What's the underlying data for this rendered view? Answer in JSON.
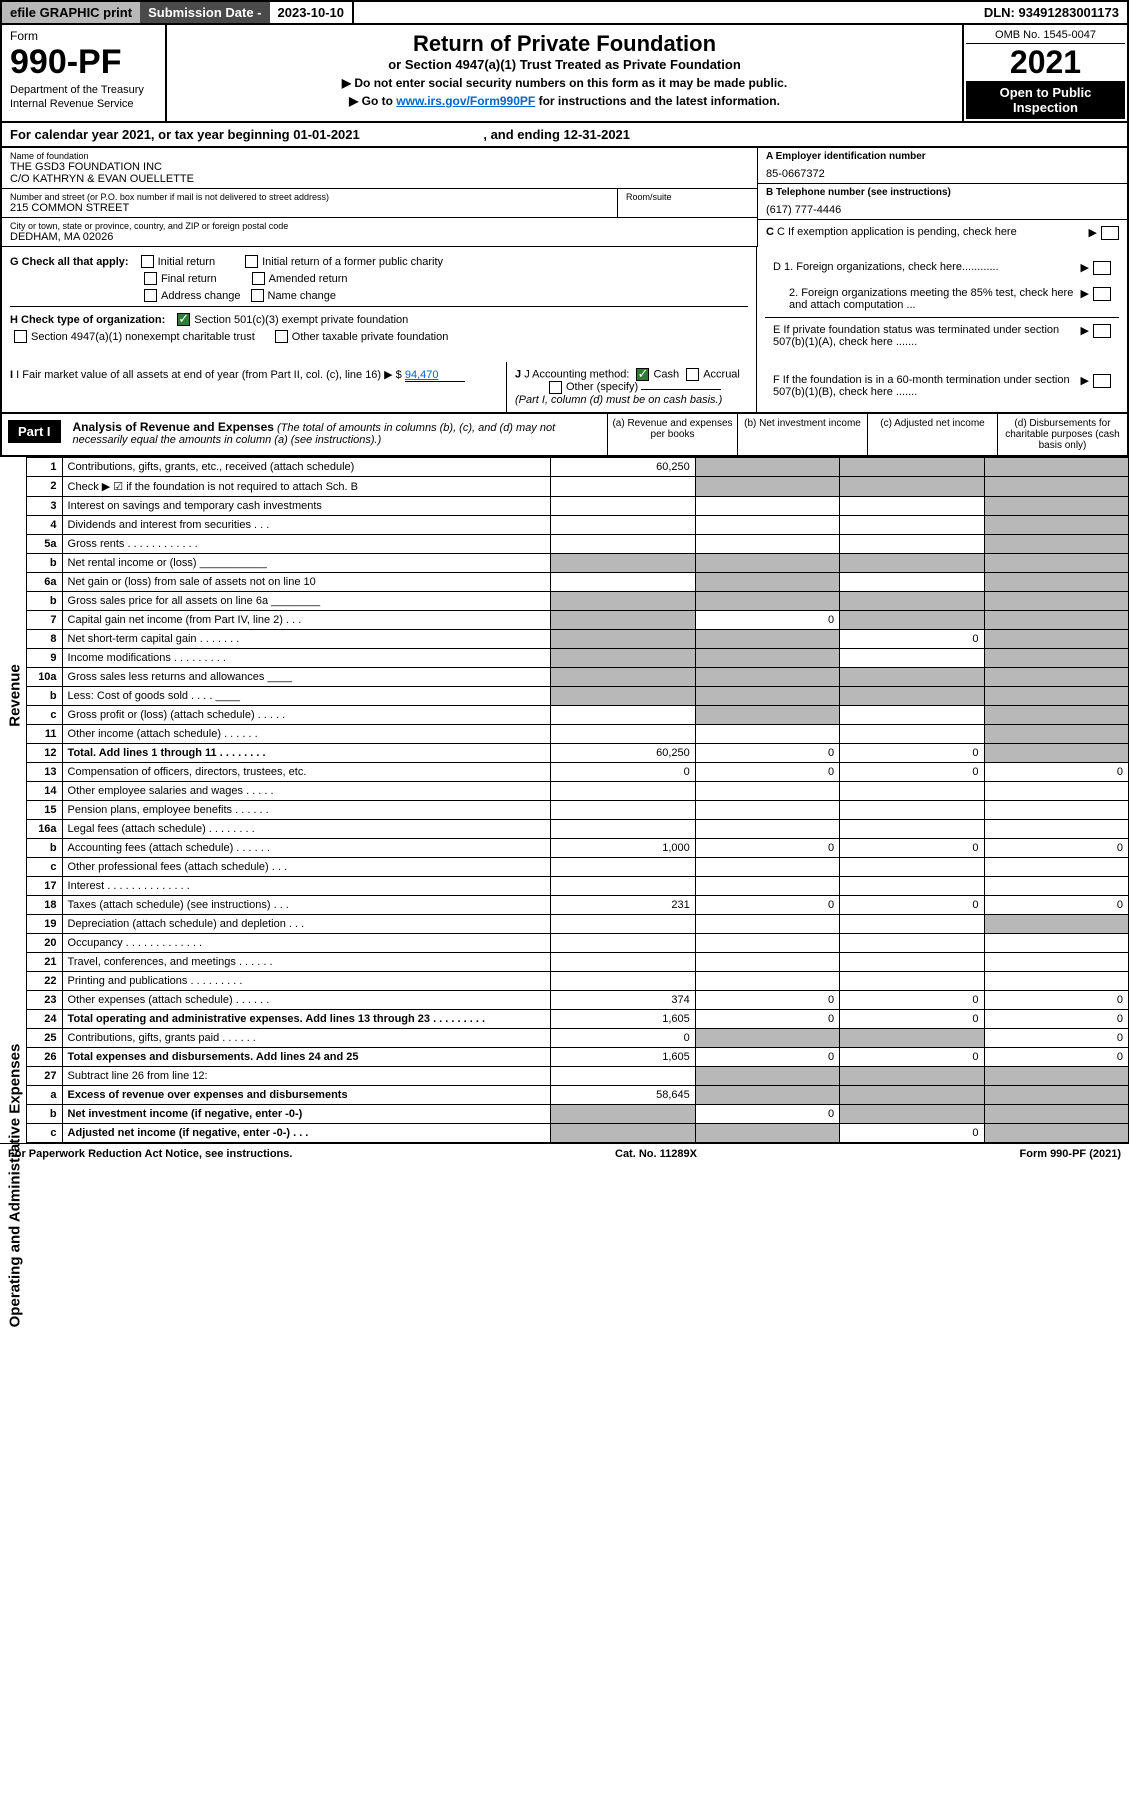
{
  "top": {
    "efile": "efile GRAPHIC print",
    "subdate_label": "Submission Date - ",
    "subdate": "2023-10-10",
    "dln": "DLN: 93491283001173"
  },
  "header": {
    "form": "Form",
    "form_number": "990-PF",
    "dept1": "Department of the Treasury",
    "dept2": "Internal Revenue Service",
    "title": "Return of Private Foundation",
    "subtitle": "or Section 4947(a)(1) Trust Treated as Private Foundation",
    "instr1": "▶ Do not enter social security numbers on this form as it may be made public.",
    "instr2_pre": "▶ Go to ",
    "instr2_link": "www.irs.gov/Form990PF",
    "instr2_post": " for instructions and the latest information.",
    "omb": "OMB No. 1545-0047",
    "year": "2021",
    "open": "Open to Public Inspection"
  },
  "cal_year": {
    "pre": "For calendar year 2021, or tax year beginning ",
    "begin": "01-01-2021",
    "mid": " , and ending ",
    "end": "12-31-2021"
  },
  "info": {
    "name_label": "Name of foundation",
    "name1": "THE GSD3 FOUNDATION INC",
    "name2": "C/O KATHRYN & EVAN OUELLETTE",
    "addr_label": "Number and street (or P.O. box number if mail is not delivered to street address)",
    "addr": "215 COMMON STREET",
    "room_label": "Room/suite",
    "city_label": "City or town, state or province, country, and ZIP or foreign postal code",
    "city": "DEDHAM, MA  02026",
    "ein_label": "A Employer identification number",
    "ein": "85-0667372",
    "phone_label": "B Telephone number (see instructions)",
    "phone": "(617) 777-4446",
    "c_label": "C If exemption application is pending, check here",
    "d1": "D 1. Foreign organizations, check here............",
    "d2": "2. Foreign organizations meeting the 85% test, check here and attach computation ...",
    "e": "E  If private foundation status was terminated under section 507(b)(1)(A), check here .......",
    "f": "F  If the foundation is in a 60-month termination under section 507(b)(1)(B), check here .......",
    "g_label": "G Check all that apply:",
    "g_opts": [
      "Initial return",
      "Initial return of a former public charity",
      "Final return",
      "Amended return",
      "Address change",
      "Name change"
    ],
    "h_label": "H Check type of organization:",
    "h_opts": [
      "Section 501(c)(3) exempt private foundation",
      "Section 4947(a)(1) nonexempt charitable trust",
      "Other taxable private foundation"
    ],
    "i_label": "I Fair market value of all assets at end of year (from Part II, col. (c), line 16)",
    "i_val": "94,470",
    "j_label": "J Accounting method:",
    "j_opts": [
      "Cash",
      "Accrual",
      "Other (specify)"
    ],
    "j_note": "(Part I, column (d) must be on cash basis.)"
  },
  "part1": {
    "label": "Part I",
    "title": "Analysis of Revenue and Expenses",
    "title_note": " (The total of amounts in columns (b), (c), and (d) may not necessarily equal the amounts in column (a) (see instructions).)",
    "col_a": "(a)   Revenue and expenses per books",
    "col_b": "(b)   Net investment income",
    "col_c": "(c)   Adjusted net income",
    "col_d": "(d)   Disbursements for charitable purposes (cash basis only)"
  },
  "side_labels": {
    "revenue": "Revenue",
    "expenses": "Operating and Administrative Expenses"
  },
  "rows": [
    {
      "n": "1",
      "desc": "Contributions, gifts, grants, etc., received (attach schedule)",
      "a": "60,250",
      "b_sh": true,
      "c_sh": true,
      "d_sh": true
    },
    {
      "n": "2",
      "desc": "Check ▶ ☑ if the foundation is not required to attach Sch. B",
      "empty": true,
      "b_sh": true,
      "c_sh": true,
      "d_sh": true
    },
    {
      "n": "3",
      "desc": "Interest on savings and temporary cash investments",
      "d_sh": true
    },
    {
      "n": "4",
      "desc": "Dividends and interest from securities   .   .   .",
      "d_sh": true
    },
    {
      "n": "5a",
      "desc": "Gross rents   .   .   .   .   .   .   .   .   .   .   .   .",
      "d_sh": true
    },
    {
      "n": "b",
      "desc": "Net rental income or (loss)  ___________",
      "a_sh": true,
      "b_sh": true,
      "c_sh": true,
      "d_sh": true
    },
    {
      "n": "6a",
      "desc": "Net gain or (loss) from sale of assets not on line 10",
      "b_sh": true,
      "d_sh": true
    },
    {
      "n": "b",
      "desc": "Gross sales price for all assets on line 6a ________",
      "a_sh": true,
      "b_sh": true,
      "c_sh": true,
      "d_sh": true
    },
    {
      "n": "7",
      "desc": "Capital gain net income (from Part IV, line 2)   .   .   .",
      "a_sh": true,
      "b": "0",
      "c_sh": true,
      "d_sh": true
    },
    {
      "n": "8",
      "desc": "Net short-term capital gain   .   .   .   .   .   .   .",
      "a_sh": true,
      "b_sh": true,
      "c": "0",
      "d_sh": true
    },
    {
      "n": "9",
      "desc": "Income modifications   .   .   .   .   .   .   .   .   .",
      "a_sh": true,
      "b_sh": true,
      "d_sh": true
    },
    {
      "n": "10a",
      "desc": "Gross sales less returns and allowances  ____",
      "a_sh": true,
      "b_sh": true,
      "c_sh": true,
      "d_sh": true
    },
    {
      "n": "b",
      "desc": "Less: Cost of goods sold   .   .   .   .   ____",
      "a_sh": true,
      "b_sh": true,
      "c_sh": true,
      "d_sh": true
    },
    {
      "n": "c",
      "desc": "Gross profit or (loss) (attach schedule)   .   .   .   .   .",
      "b_sh": true,
      "d_sh": true
    },
    {
      "n": "11",
      "desc": "Other income (attach schedule)   .   .   .   .   .   .",
      "d_sh": true
    },
    {
      "n": "12",
      "desc": "Total. Add lines 1 through 11   .   .   .   .   .   .   .   .",
      "bold": true,
      "a": "60,250",
      "b": "0",
      "c": "0",
      "d_sh": true
    },
    {
      "n": "13",
      "desc": "Compensation of officers, directors, trustees, etc.",
      "a": "0",
      "b": "0",
      "c": "0",
      "d": "0"
    },
    {
      "n": "14",
      "desc": "Other employee salaries and wages   .   .   .   .   ."
    },
    {
      "n": "15",
      "desc": "Pension plans, employee benefits   .   .   .   .   .   ."
    },
    {
      "n": "16a",
      "desc": "Legal fees (attach schedule)   .   .   .   .   .   .   .   ."
    },
    {
      "n": "b",
      "desc": "Accounting fees (attach schedule)   .   .   .   .   .   .",
      "a": "1,000",
      "b": "0",
      "c": "0",
      "d": "0"
    },
    {
      "n": "c",
      "desc": "Other professional fees (attach schedule)   .   .   ."
    },
    {
      "n": "17",
      "desc": "Interest   .   .   .   .   .   .   .   .   .   .   .   .   .   ."
    },
    {
      "n": "18",
      "desc": "Taxes (attach schedule) (see instructions)   .   .   .",
      "a": "231",
      "b": "0",
      "c": "0",
      "d": "0"
    },
    {
      "n": "19",
      "desc": "Depreciation (attach schedule) and depletion   .   .   .",
      "d_sh": true
    },
    {
      "n": "20",
      "desc": "Occupancy   .   .   .   .   .   .   .   .   .   .   .   .   ."
    },
    {
      "n": "21",
      "desc": "Travel, conferences, and meetings   .   .   .   .   .   ."
    },
    {
      "n": "22",
      "desc": "Printing and publications   .   .   .   .   .   .   .   .   ."
    },
    {
      "n": "23",
      "desc": "Other expenses (attach schedule)   .   .   .   .   .   .",
      "a": "374",
      "b": "0",
      "c": "0",
      "d": "0"
    },
    {
      "n": "24",
      "desc": "Total operating and administrative expenses. Add lines 13 through 23   .   .   .   .   .   .   .   .   .",
      "bold": true,
      "a": "1,605",
      "b": "0",
      "c": "0",
      "d": "0"
    },
    {
      "n": "25",
      "desc": "Contributions, gifts, grants paid   .   .   .   .   .   .",
      "a": "0",
      "b_sh": true,
      "c_sh": true,
      "d": "0"
    },
    {
      "n": "26",
      "desc": "Total expenses and disbursements. Add lines 24 and 25",
      "bold": true,
      "a": "1,605",
      "b": "0",
      "c": "0",
      "d": "0"
    },
    {
      "n": "27",
      "desc": "Subtract line 26 from line 12:",
      "b_sh": true,
      "c_sh": true,
      "d_sh": true
    },
    {
      "n": "a",
      "desc": "Excess of revenue over expenses and disbursements",
      "bold": true,
      "a": "58,645",
      "b_sh": true,
      "c_sh": true,
      "d_sh": true
    },
    {
      "n": "b",
      "desc": "Net investment income (if negative, enter -0-)",
      "bold": true,
      "a_sh": true,
      "b": "0",
      "c_sh": true,
      "d_sh": true
    },
    {
      "n": "c",
      "desc": "Adjusted net income (if negative, enter -0-)   .   .   .",
      "bold": true,
      "a_sh": true,
      "b_sh": true,
      "c": "0",
      "d_sh": true
    }
  ],
  "footer": {
    "left": "For Paperwork Reduction Act Notice, see instructions.",
    "mid": "Cat. No. 11289X",
    "right": "Form 990-PF (2021)"
  },
  "colors": {
    "shaded": "#b8b8b8",
    "dark_header": "#4a4a4a",
    "black": "#000000",
    "link": "#0066cc",
    "check_green": "#2e7d32"
  }
}
